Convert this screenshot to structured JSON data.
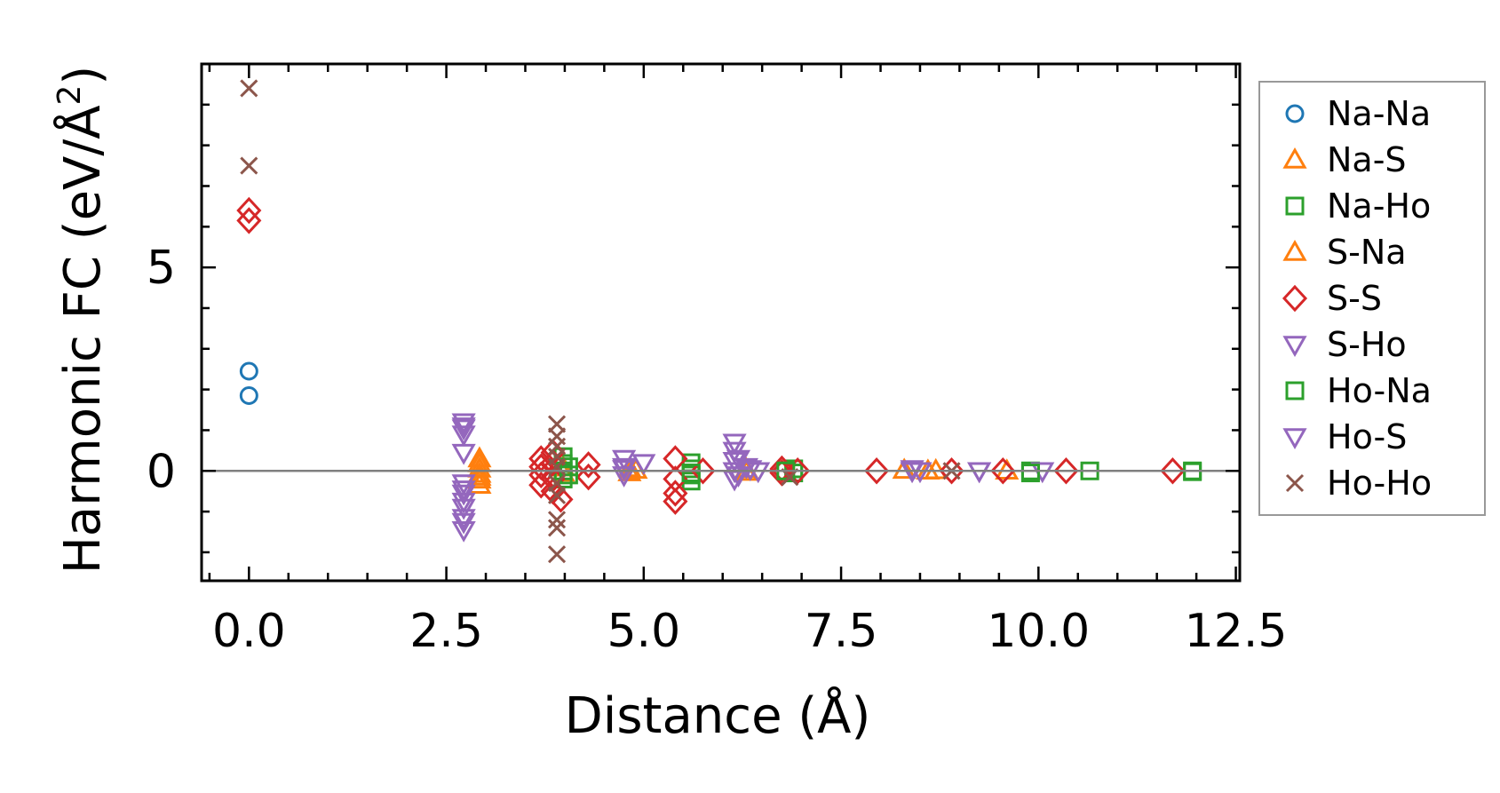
{
  "chart_data": {
    "type": "scatter",
    "xlabel": "Distance (Å)",
    "ylabel": "Harmonic FC (eV/Å²)",
    "ylabel_base": "Harmonic FC (eV/Å",
    "ylabel_sup": "2",
    "ylabel_close": ")",
    "xlim": [
      -0.6,
      12.55
    ],
    "ylim": [
      -2.7,
      10.0
    ],
    "x_ticks": [
      0.0,
      2.5,
      5.0,
      7.5,
      10.0,
      12.5
    ],
    "x_tick_labels": [
      "0.0",
      "2.5",
      "5.0",
      "7.5",
      "10.0",
      "12.5"
    ],
    "y_ticks": [
      0,
      5
    ],
    "y_tick_labels": [
      "0",
      "5"
    ],
    "x_minor_step": 0.5,
    "y_minor_step": 1.0,
    "zero_line": true,
    "grid": false,
    "legend_position": "outside-right",
    "series": [
      {
        "name": "Na-Na",
        "marker": "circle",
        "color": "#1f77b4",
        "points": [
          [
            0,
            2.45
          ],
          [
            0,
            1.85
          ]
        ]
      },
      {
        "name": "Na-S",
        "marker": "triangle-up",
        "color": "#ff7f0e",
        "points": [
          [
            2.92,
            0.18
          ],
          [
            2.92,
            0.05
          ],
          [
            2.92,
            -0.08
          ],
          [
            2.92,
            -0.22
          ],
          [
            2.92,
            -0.35
          ],
          [
            3.98,
            0.08
          ],
          [
            3.98,
            -0.05
          ],
          [
            4.82,
            0.06
          ],
          [
            4.82,
            -0.04
          ],
          [
            6.3,
            0.04
          ],
          [
            6.3,
            -0.03
          ],
          [
            8.3,
            0.02
          ],
          [
            8.7,
            0.01
          ],
          [
            9.6,
            0.0
          ]
        ]
      },
      {
        "name": "Na-Ho",
        "marker": "square",
        "color": "#2ca02c",
        "points": [
          [
            3.98,
            0.35
          ],
          [
            3.98,
            0.18
          ],
          [
            3.98,
            0.0
          ],
          [
            3.98,
            -0.2
          ],
          [
            5.6,
            0.2
          ],
          [
            5.6,
            0.05
          ],
          [
            5.6,
            -0.1
          ],
          [
            5.6,
            -0.25
          ],
          [
            6.9,
            0.05
          ],
          [
            6.9,
            -0.05
          ],
          [
            9.9,
            0.0
          ],
          [
            10.65,
            0.0
          ],
          [
            11.95,
            -0.02
          ]
        ]
      },
      {
        "name": "S-Na",
        "marker": "triangle-up",
        "color": "#ff7f0e",
        "points": [
          [
            2.92,
            0.3
          ],
          [
            2.92,
            -0.15
          ],
          [
            4.9,
            0.02
          ],
          [
            8.6,
            0.0
          ]
        ]
      },
      {
        "name": "S-S",
        "marker": "diamond",
        "color": "#d62728",
        "points": [
          [
            0,
            6.4
          ],
          [
            0,
            6.15
          ],
          [
            3.7,
            0.3
          ],
          [
            3.7,
            0.1
          ],
          [
            3.7,
            -0.1
          ],
          [
            3.7,
            -0.35
          ],
          [
            3.85,
            0.45
          ],
          [
            3.85,
            0.2
          ],
          [
            3.85,
            -0.2
          ],
          [
            3.85,
            -0.5
          ],
          [
            3.95,
            -0.7
          ],
          [
            4.3,
            0.15
          ],
          [
            4.3,
            -0.15
          ],
          [
            5.4,
            0.3
          ],
          [
            5.4,
            -0.2
          ],
          [
            5.4,
            -0.55
          ],
          [
            5.4,
            -0.75
          ],
          [
            5.75,
            0.0
          ],
          [
            6.75,
            0.05
          ],
          [
            6.75,
            -0.05
          ],
          [
            6.95,
            0.0
          ],
          [
            7.95,
            0.0
          ],
          [
            8.9,
            0.0
          ],
          [
            9.55,
            0.0
          ],
          [
            10.35,
            0.0
          ],
          [
            11.7,
            0.0
          ]
        ]
      },
      {
        "name": "S-Ho",
        "marker": "triangle-down",
        "color": "#9467bd",
        "points": [
          [
            2.72,
            1.2
          ],
          [
            2.72,
            1.05
          ],
          [
            2.72,
            0.9
          ],
          [
            2.72,
            0.45
          ],
          [
            2.72,
            -0.3
          ],
          [
            2.72,
            -0.55
          ],
          [
            2.72,
            -0.75
          ],
          [
            2.72,
            -0.9
          ],
          [
            2.72,
            -1.25
          ],
          [
            2.72,
            -1.45
          ],
          [
            4.75,
            0.3
          ],
          [
            4.75,
            0.1
          ],
          [
            4.75,
            -0.1
          ],
          [
            5.0,
            0.2
          ],
          [
            6.15,
            0.7
          ],
          [
            6.15,
            0.5
          ],
          [
            6.15,
            0.25
          ],
          [
            6.15,
            0.0
          ],
          [
            6.15,
            -0.2
          ],
          [
            6.3,
            0.1
          ],
          [
            6.45,
            0.0
          ],
          [
            8.4,
            0.0
          ],
          [
            8.5,
            0.0
          ],
          [
            9.25,
            0.0
          ],
          [
            10.05,
            0.0
          ]
        ]
      },
      {
        "name": "Ho-Na",
        "marker": "square",
        "color": "#2ca02c",
        "points": [
          [
            4.05,
            0.1
          ],
          [
            4.05,
            -0.1
          ],
          [
            5.6,
            -0.05
          ],
          [
            6.8,
            0.0
          ],
          [
            9.9,
            -0.05
          ],
          [
            11.95,
            0.0
          ]
        ]
      },
      {
        "name": "Ho-S",
        "marker": "triangle-down",
        "color": "#9467bd",
        "points": [
          [
            2.72,
            1.1
          ],
          [
            2.72,
            -0.45
          ],
          [
            2.72,
            -1.15
          ],
          [
            4.75,
            0.05
          ],
          [
            6.2,
            0.3
          ],
          [
            6.2,
            -0.1
          ],
          [
            6.35,
            0.05
          ],
          [
            8.4,
            0.05
          ],
          [
            9.25,
            0.0
          ]
        ]
      },
      {
        "name": "Ho-Ho",
        "marker": "x",
        "color": "#8c564b",
        "points": [
          [
            0,
            9.4
          ],
          [
            0,
            7.5
          ],
          [
            3.9,
            1.15
          ],
          [
            3.9,
            0.85
          ],
          [
            3.9,
            0.6
          ],
          [
            3.9,
            0.35
          ],
          [
            3.9,
            0.1
          ],
          [
            3.9,
            -0.3
          ],
          [
            3.9,
            -0.6
          ],
          [
            3.9,
            -1.2
          ],
          [
            3.9,
            -1.4
          ],
          [
            3.9,
            -2.05
          ],
          [
            6.85,
            -0.15
          ],
          [
            8.9,
            0.0
          ]
        ]
      }
    ]
  }
}
